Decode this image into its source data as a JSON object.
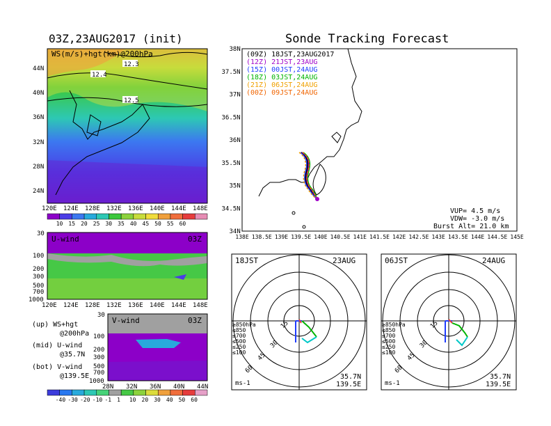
{
  "init_title": "03Z,23AUG2017 (init)",
  "main_title": "Sonde Tracking Forecast",
  "colors": {
    "ws_scale": [
      "#8c00c8",
      "#4b3ce6",
      "#3c78f0",
      "#28aadc",
      "#2dc8b4",
      "#3cc83c",
      "#8cd23c",
      "#c8dc3c",
      "#f0dc3c",
      "#f0a03c",
      "#f06e3c",
      "#e63c3c",
      "#e68cb4"
    ],
    "wind_scale": [
      "#3c3cdc",
      "#2878f0",
      "#28aadc",
      "#2dc8b4",
      "#46d278",
      "#a0a0a0",
      "#46c846",
      "#8cd23c",
      "#dcdc3c",
      "#f0a03c",
      "#f06e3c",
      "#e63c3c",
      "#e6a0c8"
    ]
  },
  "map_panel": {
    "label": "WS(m/s)+hgt(km)@200hPa",
    "contours": [
      "12.3",
      "12.4",
      "12.5"
    ],
    "lat_ticks": [
      "44N",
      "40N",
      "36N",
      "32N",
      "28N",
      "24N"
    ],
    "lon_ticks": [
      "120E",
      "124E",
      "128E",
      "132E",
      "136E",
      "140E",
      "144E",
      "148E"
    ],
    "colorbar_labels": [
      "10",
      "15",
      "20",
      "25",
      "30",
      "35",
      "40",
      "45",
      "50",
      "55",
      "60"
    ]
  },
  "u_panel": {
    "label": "U-wind",
    "time": "03Z",
    "levels": [
      "30",
      "100",
      "200",
      "300",
      "500",
      "700",
      "1000"
    ],
    "lon_ticks": [
      "120E",
      "124E",
      "128E",
      "132E",
      "136E",
      "140E",
      "144E",
      "148E"
    ]
  },
  "v_panel": {
    "label": "V-wind",
    "time": "03Z",
    "levels": [
      "30",
      "100",
      "200",
      "300",
      "500",
      "700",
      "1000"
    ],
    "lat_ticks": [
      "28N",
      "32N",
      "36N",
      "40N",
      "44N"
    ]
  },
  "legend_text": [
    "(up) WS+hgt",
    "@200hPa",
    "(mid) U-wind",
    "@35.7N",
    "(bot) V-wind",
    "@139.5E"
  ],
  "bottom_colorbar_labels": [
    "-40",
    "-30",
    "-20",
    "-10",
    "-1",
    "1",
    "10",
    "20",
    "30",
    "40",
    "50",
    "60"
  ],
  "track_map": {
    "lat_ticks": [
      "38N",
      "37.5N",
      "37N",
      "36.5N",
      "36N",
      "35.5N",
      "35N",
      "34.5N",
      "34N"
    ],
    "lon_ticks": [
      "138E",
      "138.5E",
      "139E",
      "139.5E",
      "140E",
      "140.5E",
      "141E",
      "141.5E",
      "142E",
      "142.5E",
      "143E",
      "143.5E",
      "144E",
      "144.5E",
      "145E"
    ],
    "launches": [
      {
        "z": "(09Z)",
        "jst": "18JST,23AUG2017",
        "color": "#000000"
      },
      {
        "z": "(12Z)",
        "jst": "21JST,23AUG",
        "color": "#a000c8"
      },
      {
        "z": "(15Z)",
        "jst": "00JST,24AUG",
        "color": "#1e3cff"
      },
      {
        "z": "(18Z)",
        "jst": "03JST,24AUG",
        "color": "#00b400"
      },
      {
        "z": "(21Z)",
        "jst": "06JST,24AUG",
        "color": "#f0a000"
      },
      {
        "z": "(00Z)",
        "jst": "09JST,24AUG",
        "color": "#f06400"
      }
    ],
    "params": {
      "vup": "VUP=  4.5 m/s",
      "vdw": "VDW= -3.0 m/s",
      "burst": "Burst Alt= 21.0 km"
    }
  },
  "hodographs": [
    {
      "time": "18JST",
      "date": "23AUG",
      "lat": "35.7N",
      "lon": "139.5E",
      "units": "ms-1",
      "rings": [
        "15",
        "30",
        "45",
        "60"
      ]
    },
    {
      "time": "06JST",
      "date": "24AUG",
      "lat": "35.7N",
      "lon": "139.5E",
      "units": "ms-1",
      "rings": [
        "15",
        "30",
        "45",
        "60"
      ]
    }
  ],
  "hodo_legend": [
    {
      "text": "≥850hPa",
      "color": "#e63c3c"
    },
    {
      "text": "≤850",
      "color": "#f0a000"
    },
    {
      "text": "≤700",
      "color": "#e6c800"
    },
    {
      "text": "≤500",
      "color": "#00b400"
    },
    {
      "text": "≤250",
      "color": "#00c8c8"
    },
    {
      "text": "≤100",
      "color": "#1e3cff"
    }
  ]
}
